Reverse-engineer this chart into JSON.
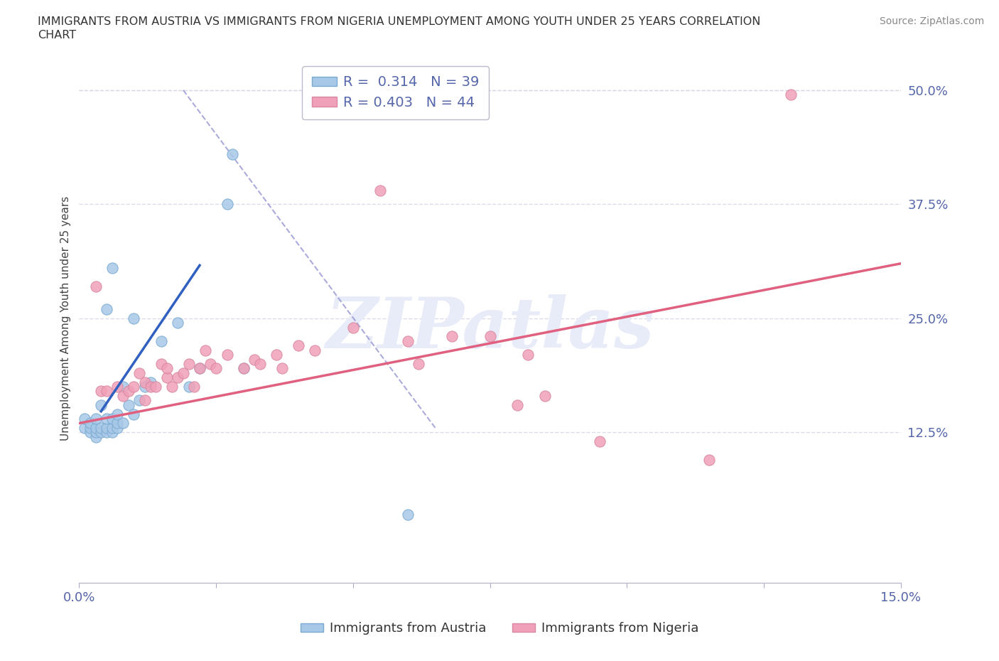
{
  "title_line1": "IMMIGRANTS FROM AUSTRIA VS IMMIGRANTS FROM NIGERIA UNEMPLOYMENT AMONG YOUTH UNDER 25 YEARS CORRELATION",
  "title_line2": "CHART",
  "source": "Source: ZipAtlas.com",
  "ylabel": "Unemployment Among Youth under 25 years",
  "xlim": [
    0.0,
    0.15
  ],
  "ylim": [
    -0.04,
    0.54
  ],
  "yticks_right": [
    0.125,
    0.25,
    0.375,
    0.5
  ],
  "ytick_right_labels": [
    "12.5%",
    "25.0%",
    "37.5%",
    "50.0%"
  ],
  "R_austria": 0.314,
  "N_austria": 39,
  "R_nigeria": 0.403,
  "N_nigeria": 44,
  "austria_color": "#A8C8E8",
  "austria_edge": "#7aaad0",
  "nigeria_color": "#F0A0B8",
  "nigeria_edge": "#d888a0",
  "austria_line_color": "#3060C0",
  "nigeria_line_color": "#E06080",
  "dashed_line_color": "#8888CC",
  "background_color": "#FFFFFF",
  "grid_color": "#D8D8E8",
  "watermark_color": "#E8ECF8",
  "austria_x": [
    0.001,
    0.001,
    0.002,
    0.002,
    0.002,
    0.003,
    0.003,
    0.003,
    0.003,
    0.004,
    0.004,
    0.004,
    0.005,
    0.005,
    0.005,
    0.005,
    0.006,
    0.006,
    0.006,
    0.006,
    0.007,
    0.007,
    0.007,
    0.008,
    0.008,
    0.009,
    0.01,
    0.01,
    0.011,
    0.012,
    0.013,
    0.015,
    0.018,
    0.02,
    0.022,
    0.027,
    0.028,
    0.03,
    0.06
  ],
  "austria_y": [
    0.13,
    0.14,
    0.125,
    0.13,
    0.135,
    0.12,
    0.125,
    0.13,
    0.14,
    0.125,
    0.13,
    0.155,
    0.125,
    0.13,
    0.14,
    0.26,
    0.125,
    0.13,
    0.14,
    0.305,
    0.13,
    0.135,
    0.145,
    0.135,
    0.175,
    0.155,
    0.145,
    0.25,
    0.16,
    0.175,
    0.18,
    0.225,
    0.245,
    0.175,
    0.195,
    0.375,
    0.43,
    0.195,
    0.035
  ],
  "nigeria_x": [
    0.003,
    0.004,
    0.005,
    0.007,
    0.008,
    0.009,
    0.01,
    0.011,
    0.012,
    0.012,
    0.013,
    0.014,
    0.015,
    0.016,
    0.016,
    0.017,
    0.018,
    0.019,
    0.02,
    0.021,
    0.022,
    0.023,
    0.024,
    0.025,
    0.027,
    0.03,
    0.032,
    0.033,
    0.036,
    0.037,
    0.04,
    0.043,
    0.05,
    0.055,
    0.06,
    0.062,
    0.068,
    0.075,
    0.08,
    0.082,
    0.085,
    0.095,
    0.115,
    0.13
  ],
  "nigeria_y": [
    0.285,
    0.17,
    0.17,
    0.175,
    0.165,
    0.17,
    0.175,
    0.19,
    0.16,
    0.18,
    0.175,
    0.175,
    0.2,
    0.185,
    0.195,
    0.175,
    0.185,
    0.19,
    0.2,
    0.175,
    0.195,
    0.215,
    0.2,
    0.195,
    0.21,
    0.195,
    0.205,
    0.2,
    0.21,
    0.195,
    0.22,
    0.215,
    0.24,
    0.39,
    0.225,
    0.2,
    0.23,
    0.23,
    0.155,
    0.21,
    0.165,
    0.115,
    0.095,
    0.495
  ],
  "aus_line_x": [
    0.004,
    0.022
  ],
  "aus_line_y": [
    0.148,
    0.308
  ],
  "nig_line_x": [
    0.0,
    0.15
  ],
  "nig_line_y": [
    0.135,
    0.31
  ],
  "dash_line_x": [
    0.019,
    0.065
  ],
  "dash_line_y": [
    0.5,
    0.13
  ]
}
